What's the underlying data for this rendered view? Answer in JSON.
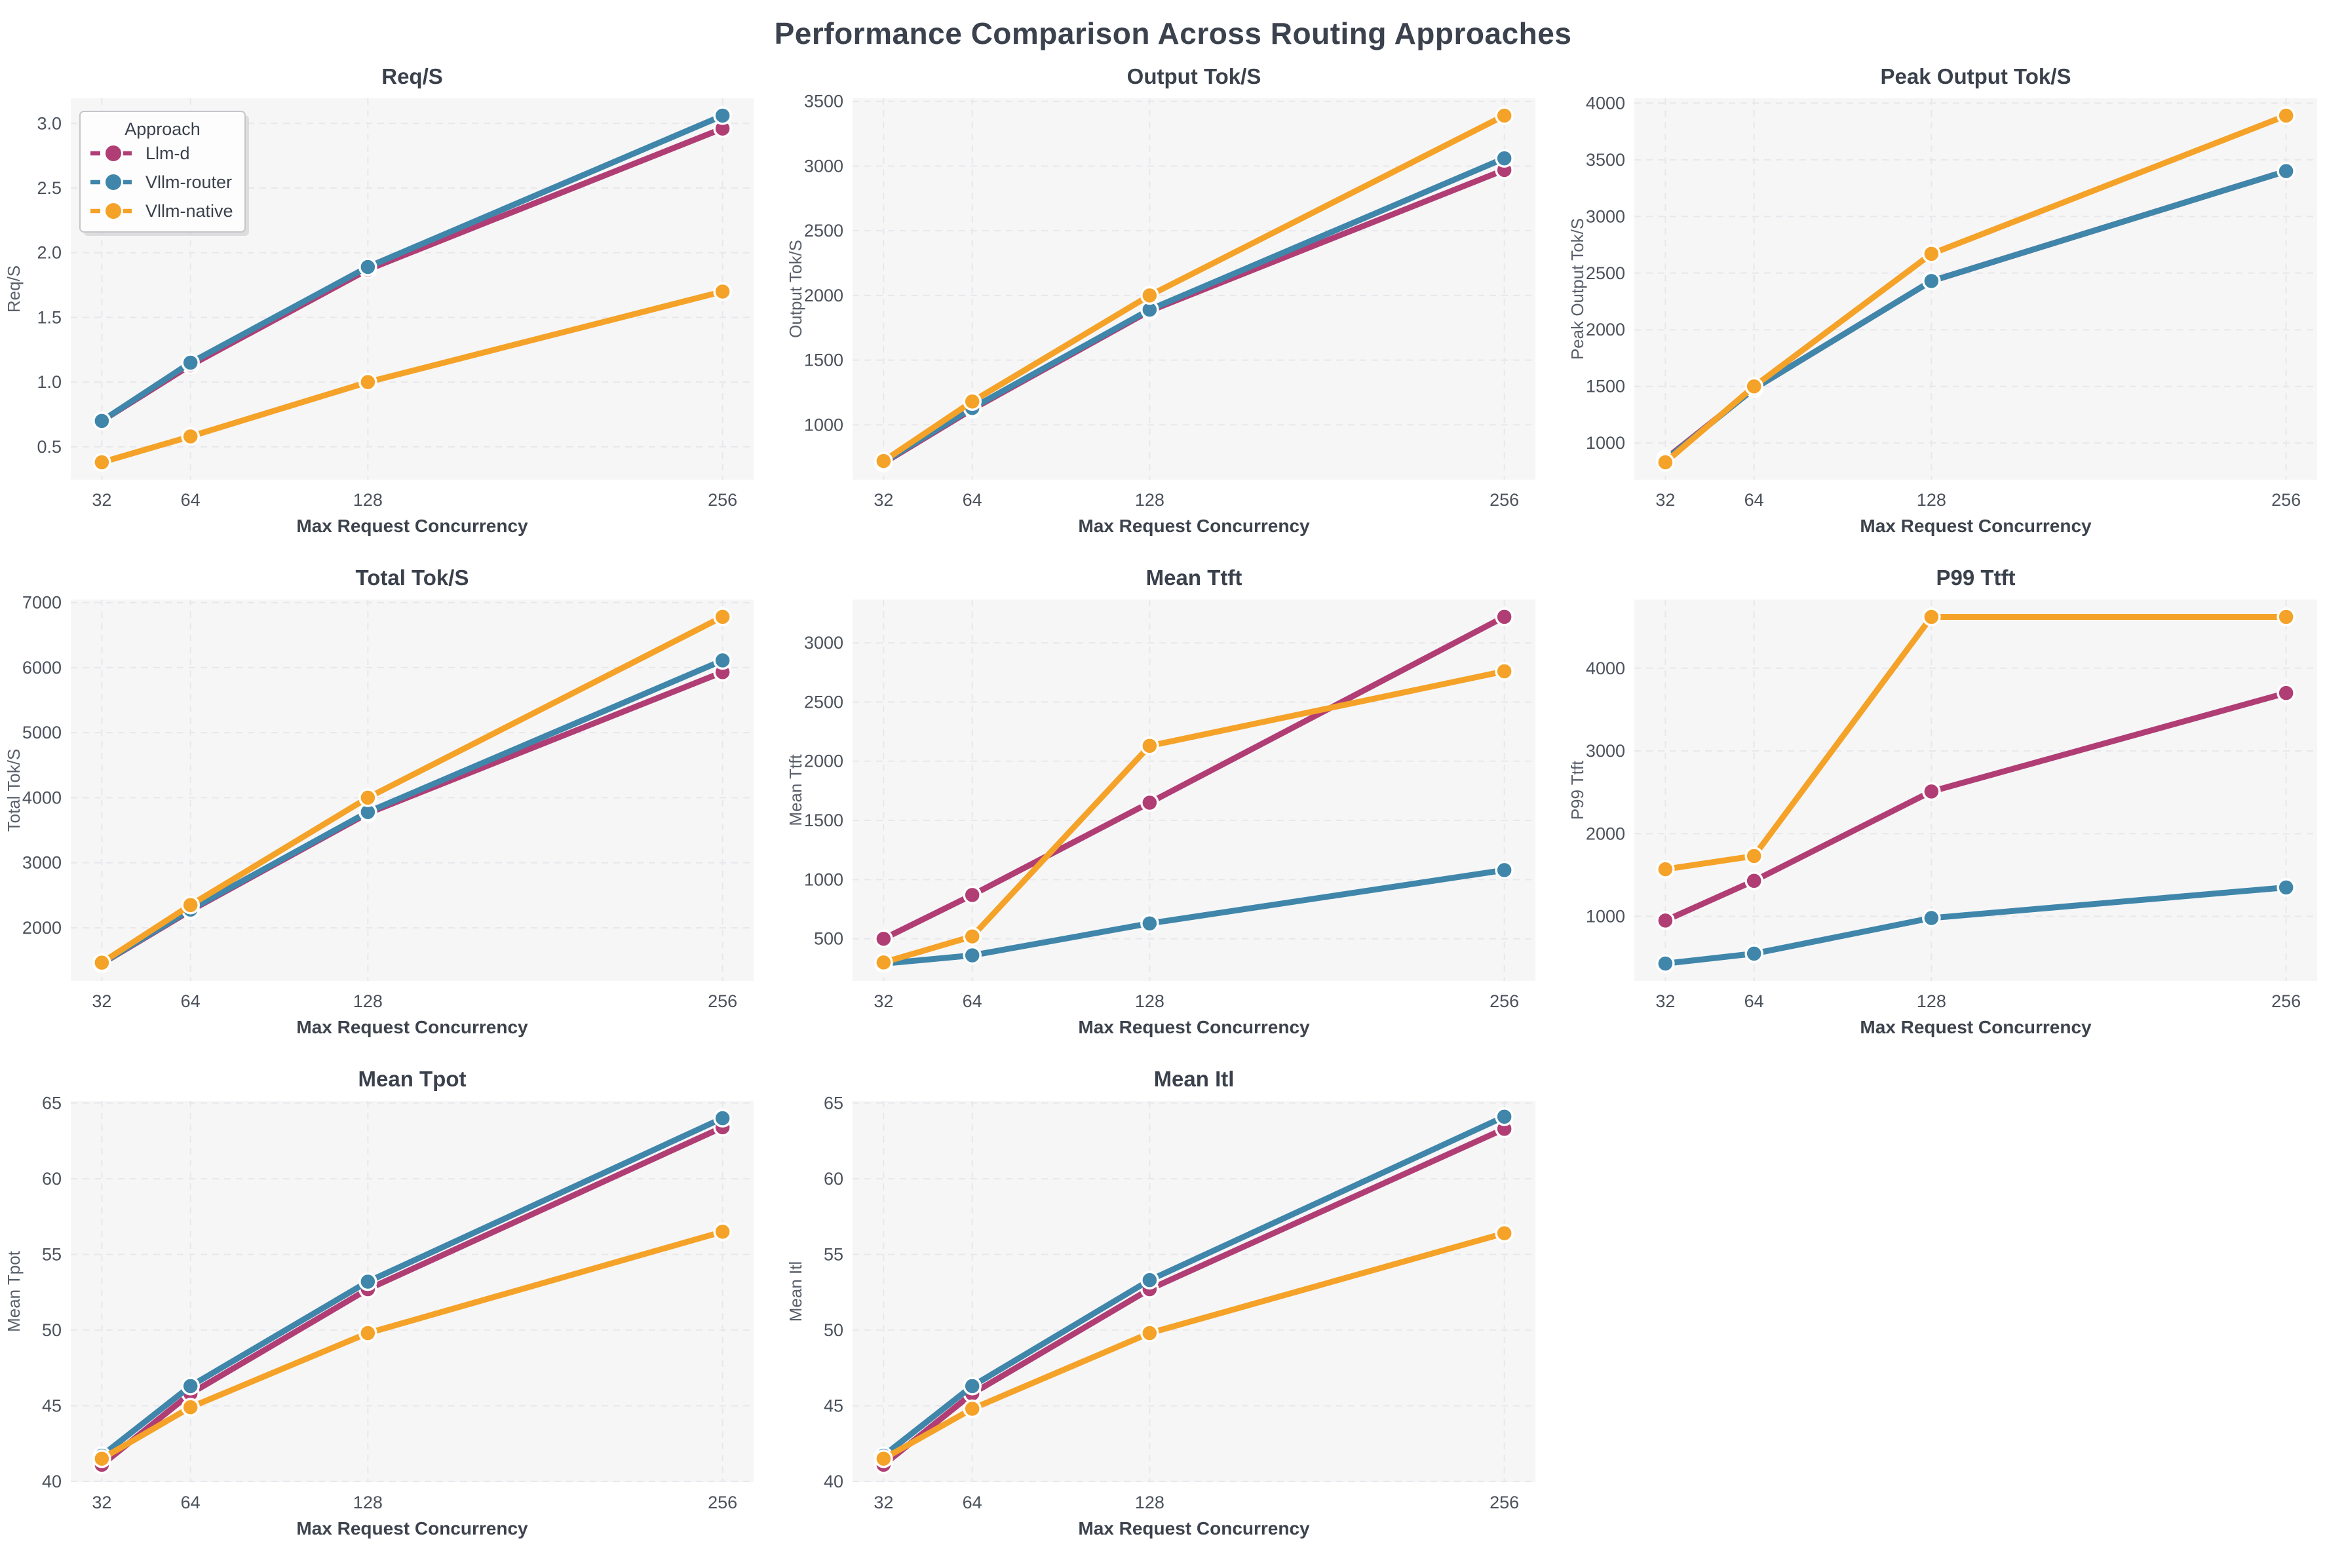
{
  "page_title": "Performance Comparison Across Routing Approaches",
  "legend": {
    "title": "Approach",
    "entries": [
      {
        "label": "Llm-d",
        "color": "#b03e74"
      },
      {
        "label": "Vllm-router",
        "color": "#3f86aa"
      },
      {
        "label": "Vllm-native",
        "color": "#f5a228"
      }
    ]
  },
  "axis": {
    "xlabel": "Max Request Concurrency",
    "x_categories": [
      32,
      64,
      128,
      256
    ],
    "xlim": [
      20.8,
      267.2
    ]
  },
  "chart_data": [
    {
      "type": "line",
      "title": "Req/S",
      "ylabel": "Req/S",
      "legend": true,
      "x": [
        32,
        64,
        128,
        256
      ],
      "ylim": [
        0.246,
        3.194
      ],
      "yticks": [
        "0.5",
        "1.0",
        "1.5",
        "2.0",
        "2.5",
        "3.0"
      ],
      "series": [
        {
          "name": "Llm-d",
          "color": "#b03e74",
          "values": [
            0.7,
            1.13,
            1.87,
            2.96
          ]
        },
        {
          "name": "Vllm-router",
          "color": "#3f86aa",
          "values": [
            0.7,
            1.15,
            1.89,
            3.06
          ]
        },
        {
          "name": "Vllm-native",
          "color": "#f5a228",
          "values": [
            0.38,
            0.58,
            1.0,
            1.7
          ]
        }
      ]
    },
    {
      "type": "line",
      "title": "Output Tok/S",
      "ylabel": "Output Tok/S",
      "legend": false,
      "x": [
        32,
        64,
        128,
        256
      ],
      "ylim": [
        576,
        3524
      ],
      "yticks": [
        "1000",
        "1500",
        "2000",
        "2500",
        "3000",
        "3500"
      ],
      "series": [
        {
          "name": "Llm-d",
          "color": "#b03e74",
          "values": [
            705,
            1120,
            1880,
            2970
          ]
        },
        {
          "name": "Vllm-router",
          "color": "#3f86aa",
          "values": [
            712,
            1130,
            1890,
            3060
          ]
        },
        {
          "name": "Vllm-native",
          "color": "#f5a228",
          "values": [
            720,
            1180,
            2000,
            3390
          ]
        }
      ]
    },
    {
      "type": "line",
      "title": "Peak Output Tok/S",
      "ylabel": "Peak Output Tok/S",
      "legend": false,
      "x": [
        32,
        64,
        128,
        256
      ],
      "ylim": [
        677,
        4043
      ],
      "yticks": [
        "1000",
        "1500",
        "2000",
        "2500",
        "3000",
        "3500",
        "4000"
      ],
      "series": [
        {
          "name": "Llm-d",
          "color": "#b03e74",
          "values": [
            860,
            1480,
            2430,
            3400
          ]
        },
        {
          "name": "Vllm-router",
          "color": "#3f86aa",
          "values": [
            850,
            1480,
            2430,
            3400
          ]
        },
        {
          "name": "Vllm-native",
          "color": "#f5a228",
          "values": [
            830,
            1500,
            2670,
            3890
          ]
        }
      ]
    },
    {
      "type": "line",
      "title": "Total Tok/S",
      "ylabel": "Total Tok/S",
      "legend": false,
      "x": [
        32,
        64,
        128,
        256
      ],
      "ylim": [
        1184,
        7046
      ],
      "yticks": [
        "2000",
        "3000",
        "4000",
        "5000",
        "6000",
        "7000"
      ],
      "series": [
        {
          "name": "Llm-d",
          "color": "#b03e74",
          "values": [
            1450,
            2265,
            3760,
            5930
          ]
        },
        {
          "name": "Vllm-router",
          "color": "#3f86aa",
          "values": [
            1455,
            2280,
            3780,
            6110
          ]
        },
        {
          "name": "Vllm-native",
          "color": "#f5a228",
          "values": [
            1465,
            2350,
            4000,
            6780
          ]
        }
      ]
    },
    {
      "type": "line",
      "title": "Mean Ttft",
      "ylabel": "Mean Ttft",
      "legend": false,
      "x": [
        32,
        64,
        128,
        256
      ],
      "ylim": [
        144,
        3366
      ],
      "yticks": [
        "500",
        "1000",
        "1500",
        "2000",
        "2500",
        "3000"
      ],
      "series": [
        {
          "name": "Llm-d",
          "color": "#b03e74",
          "values": [
            500,
            870,
            1650,
            3220
          ]
        },
        {
          "name": "Vllm-router",
          "color": "#3f86aa",
          "values": [
            290,
            360,
            630,
            1080
          ]
        },
        {
          "name": "Vllm-native",
          "color": "#f5a228",
          "values": [
            300,
            520,
            2130,
            2760
          ]
        }
      ]
    },
    {
      "type": "line",
      "title": "P99 Ttft",
      "ylabel": "P99 Ttft",
      "legend": false,
      "x": [
        32,
        64,
        128,
        256
      ],
      "ylim": [
        220,
        4830
      ],
      "yticks": [
        "1000",
        "2000",
        "3000",
        "4000"
      ],
      "series": [
        {
          "name": "Llm-d",
          "color": "#b03e74",
          "values": [
            950,
            1430,
            2510,
            3700
          ]
        },
        {
          "name": "Vllm-router",
          "color": "#3f86aa",
          "values": [
            430,
            550,
            980,
            1350
          ]
        },
        {
          "name": "Vllm-native",
          "color": "#f5a228",
          "values": [
            1570,
            1730,
            4620,
            4620
          ]
        }
      ]
    },
    {
      "type": "line",
      "title": "Mean Tpot",
      "ylabel": "Mean Tpot",
      "legend": false,
      "x": [
        32,
        64,
        128,
        256
      ],
      "ylim": [
        39.95,
        65.15
      ],
      "yticks": [
        "40",
        "45",
        "50",
        "55",
        "60",
        "65"
      ],
      "series": [
        {
          "name": "Llm-d",
          "color": "#b03e74",
          "values": [
            41.1,
            45.8,
            52.7,
            63.4
          ]
        },
        {
          "name": "Vllm-router",
          "color": "#3f86aa",
          "values": [
            41.7,
            46.3,
            53.2,
            64.0
          ]
        },
        {
          "name": "Vllm-native",
          "color": "#f5a228",
          "values": [
            41.5,
            44.9,
            49.8,
            56.5
          ]
        }
      ]
    },
    {
      "type": "line",
      "title": "Mean Itl",
      "ylabel": "Mean Itl",
      "legend": false,
      "x": [
        32,
        64,
        128,
        256
      ],
      "ylim": [
        39.95,
        65.15
      ],
      "yticks": [
        "40",
        "45",
        "50",
        "55",
        "60",
        "65"
      ],
      "series": [
        {
          "name": "Llm-d",
          "color": "#b03e74",
          "values": [
            41.1,
            45.8,
            52.7,
            63.3
          ]
        },
        {
          "name": "Vllm-router",
          "color": "#3f86aa",
          "values": [
            41.7,
            46.3,
            53.3,
            64.1
          ]
        },
        {
          "name": "Vllm-native",
          "color": "#f5a228",
          "values": [
            41.5,
            44.8,
            49.8,
            56.4
          ]
        }
      ]
    }
  ],
  "style": {
    "plot_bg": "#f6f6f7",
    "grid_color": "#e8e8ec",
    "title_color": "#3a414c",
    "tick_color": "#4c525c",
    "axis_label_color": "#3d434d",
    "y_label_color": "#59606a"
  }
}
